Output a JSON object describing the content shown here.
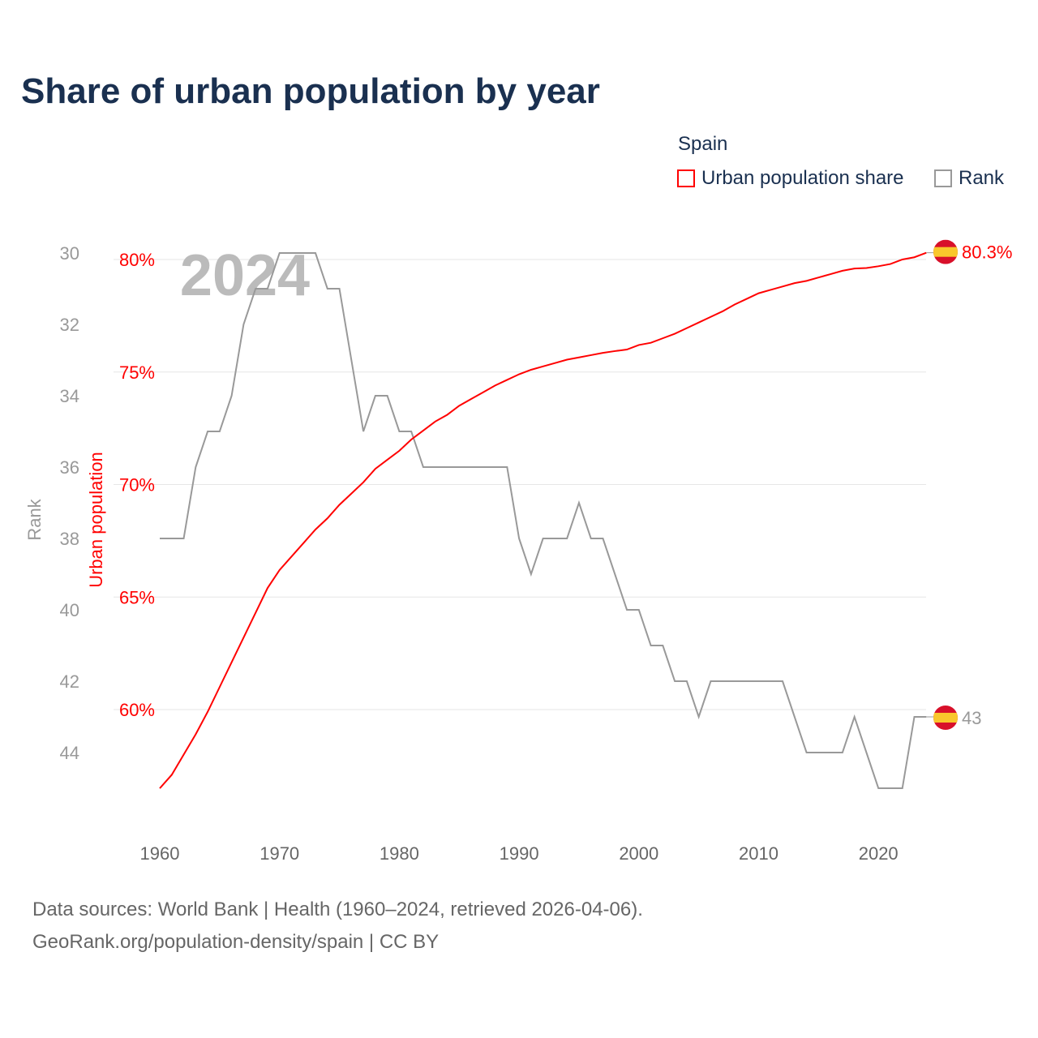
{
  "title": "Share of urban population by year",
  "legend": {
    "country": "Spain",
    "items": [
      {
        "label": "Urban population share",
        "color": "#ff0000"
      },
      {
        "label": "Rank",
        "color": "#999999"
      }
    ]
  },
  "footer": {
    "line1": "Data sources: World Bank | Health (1960–2024, retrieved 2026-04-06).",
    "line2": "GeoRank.org/population-density/spain | CC BY"
  },
  "chart_data": {
    "type": "line",
    "year_watermark": "2024",
    "xlabel": "",
    "ylabel_left_outer": "Rank",
    "ylabel_left_inner": "Urban population",
    "x_ticks": [
      "1960",
      "1970",
      "1980",
      "1990",
      "2000",
      "2010",
      "2020"
    ],
    "xlim": [
      1960,
      2024
    ],
    "urban_ticks": [
      "60%",
      "65%",
      "70%",
      "75%",
      "80%"
    ],
    "urban_ylim": [
      58.3,
      80.3
    ],
    "rank_ticks": [
      "30",
      "32",
      "34",
      "36",
      "38",
      "40",
      "42",
      "44"
    ],
    "rank_ylim": [
      30,
      45
    ],
    "end_labels": {
      "urban": "80.3%",
      "rank": "43"
    },
    "x": [
      1960,
      1961,
      1962,
      1963,
      1964,
      1965,
      1966,
      1967,
      1968,
      1969,
      1970,
      1971,
      1972,
      1973,
      1974,
      1975,
      1976,
      1977,
      1978,
      1979,
      1980,
      1981,
      1982,
      1983,
      1984,
      1985,
      1986,
      1987,
      1988,
      1989,
      1990,
      1991,
      1992,
      1993,
      1994,
      1995,
      1996,
      1997,
      1998,
      1999,
      2000,
      2001,
      2002,
      2003,
      2004,
      2005,
      2006,
      2007,
      2008,
      2009,
      2010,
      2011,
      2012,
      2013,
      2014,
      2015,
      2016,
      2017,
      2018,
      2019,
      2020,
      2021,
      2022,
      2023,
      2024
    ],
    "series": [
      {
        "name": "Urban population share",
        "unit": "%",
        "color": "#ff0000",
        "values": [
          56.5,
          57.1,
          58.0,
          58.9,
          59.9,
          61.0,
          62.1,
          63.2,
          64.3,
          65.4,
          66.2,
          66.8,
          67.4,
          68.0,
          68.5,
          69.1,
          69.6,
          70.1,
          70.7,
          71.1,
          71.5,
          72.0,
          72.4,
          72.8,
          73.1,
          73.5,
          73.8,
          74.1,
          74.4,
          74.65,
          74.9,
          75.1,
          75.25,
          75.4,
          75.55,
          75.65,
          75.75,
          75.85,
          75.93,
          76.0,
          76.2,
          76.3,
          76.5,
          76.7,
          76.95,
          77.2,
          77.45,
          77.7,
          78.0,
          78.25,
          78.5,
          78.65,
          78.8,
          78.95,
          79.05,
          79.2,
          79.35,
          79.5,
          79.6,
          79.62,
          79.7,
          79.8,
          80.0,
          80.1,
          80.3
        ]
      },
      {
        "name": "Rank",
        "color": "#999999",
        "values": [
          38,
          38,
          38,
          36,
          35,
          35,
          34,
          32,
          31,
          31,
          30,
          30,
          30,
          30,
          31,
          31,
          33,
          35,
          34,
          34,
          35,
          35,
          36,
          36,
          36,
          36,
          36,
          36,
          36,
          36,
          38,
          39,
          38,
          38,
          38,
          37,
          38,
          38,
          39,
          40,
          40,
          41,
          41,
          42,
          42,
          43,
          42,
          42,
          42,
          42,
          42,
          42,
          42,
          43,
          44,
          44,
          44,
          44,
          43,
          44,
          45,
          45,
          45,
          43,
          43
        ]
      }
    ]
  }
}
